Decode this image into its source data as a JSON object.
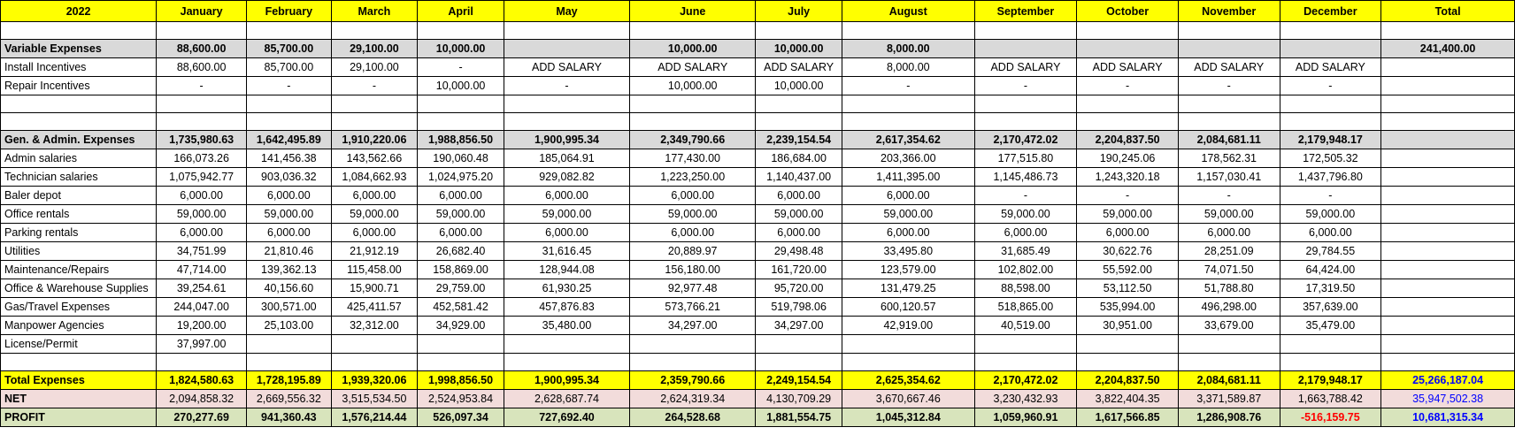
{
  "header": [
    "2022",
    "January",
    "February",
    "March",
    "April",
    "May",
    "June",
    "July",
    "August",
    "September",
    "October",
    "November",
    "December",
    "Total"
  ],
  "rows": [
    {
      "type": "blank",
      "cells": [
        "",
        "",
        "",
        "",
        "",
        "",
        "",
        "",
        "",
        "",
        "",
        "",
        "",
        ""
      ]
    },
    {
      "type": "sec",
      "cells": [
        "Variable Expenses",
        "88,600.00",
        "85,700.00",
        "29,100.00",
        "10,000.00",
        "",
        "10,000.00",
        "10,000.00",
        "8,000.00",
        "",
        "",
        "",
        "",
        "241,400.00"
      ]
    },
    {
      "type": "data",
      "cells": [
        "Install Incentives",
        "88,600.00",
        "85,700.00",
        "29,100.00",
        "-",
        "ADD SALARY",
        "ADD SALARY",
        "ADD SALARY",
        "8,000.00",
        "ADD SALARY",
        "ADD SALARY",
        "ADD SALARY",
        "ADD SALARY",
        ""
      ]
    },
    {
      "type": "data",
      "cells": [
        "Repair Incentives",
        "-",
        "-",
        "-",
        "10,000.00",
        "-",
        "10,000.00",
        "10,000.00",
        "-",
        "-",
        "-",
        "-",
        "-",
        ""
      ]
    },
    {
      "type": "blank",
      "cells": [
        "",
        "",
        "",
        "",
        "",
        "",
        "",
        "",
        "",
        "",
        "",
        "",
        "",
        ""
      ]
    },
    {
      "type": "blank",
      "cells": [
        "",
        "",
        "",
        "",
        "",
        "",
        "",
        "",
        "",
        "",
        "",
        "",
        "",
        ""
      ]
    },
    {
      "type": "sec",
      "cells": [
        "Gen. & Admin. Expenses",
        "1,735,980.63",
        "1,642,495.89",
        "1,910,220.06",
        "1,988,856.50",
        "1,900,995.34",
        "2,349,790.66",
        "2,239,154.54",
        "2,617,354.62",
        "2,170,472.02",
        "2,204,837.50",
        "2,084,681.11",
        "2,179,948.17",
        ""
      ]
    },
    {
      "type": "data",
      "cells": [
        "Admin salaries",
        "166,073.26",
        "141,456.38",
        "143,562.66",
        "190,060.48",
        "185,064.91",
        "177,430.00",
        "186,684.00",
        "203,366.00",
        "177,515.80",
        "190,245.06",
        "178,562.31",
        "172,505.32",
        ""
      ]
    },
    {
      "type": "data",
      "cells": [
        "Technician salaries",
        "1,075,942.77",
        "903,036.32",
        "1,084,662.93",
        "1,024,975.20",
        "929,082.82",
        "1,223,250.00",
        "1,140,437.00",
        "1,411,395.00",
        "1,145,486.73",
        "1,243,320.18",
        "1,157,030.41",
        "1,437,796.80",
        ""
      ]
    },
    {
      "type": "data",
      "cells": [
        "Baler depot",
        "6,000.00",
        "6,000.00",
        "6,000.00",
        "6,000.00",
        "6,000.00",
        "6,000.00",
        "6,000.00",
        "6,000.00",
        "-",
        "-",
        "-",
        "-",
        ""
      ]
    },
    {
      "type": "data",
      "cells": [
        "Office rentals",
        "59,000.00",
        "59,000.00",
        "59,000.00",
        "59,000.00",
        "59,000.00",
        "59,000.00",
        "59,000.00",
        "59,000.00",
        "59,000.00",
        "59,000.00",
        "59,000.00",
        "59,000.00",
        ""
      ]
    },
    {
      "type": "data",
      "cells": [
        "Parking rentals",
        "6,000.00",
        "6,000.00",
        "6,000.00",
        "6,000.00",
        "6,000.00",
        "6,000.00",
        "6,000.00",
        "6,000.00",
        "6,000.00",
        "6,000.00",
        "6,000.00",
        "6,000.00",
        ""
      ]
    },
    {
      "type": "data",
      "cells": [
        "Utilities",
        "34,751.99",
        "21,810.46",
        "21,912.19",
        "26,682.40",
        "31,616.45",
        "20,889.97",
        "29,498.48",
        "33,495.80",
        "31,685.49",
        "30,622.76",
        "28,251.09",
        "29,784.55",
        ""
      ]
    },
    {
      "type": "data",
      "cells": [
        "Maintenance/Repairs",
        "47,714.00",
        "139,362.13",
        "115,458.00",
        "158,869.00",
        "128,944.08",
        "156,180.00",
        "161,720.00",
        "123,579.00",
        "102,802.00",
        "55,592.00",
        "74,071.50",
        "64,424.00",
        ""
      ]
    },
    {
      "type": "data",
      "cells": [
        "Office & Warehouse Supplies",
        "39,254.61",
        "40,156.60",
        "15,900.71",
        "29,759.00",
        "61,930.25",
        "92,977.48",
        "95,720.00",
        "131,479.25",
        "88,598.00",
        "53,112.50",
        "51,788.80",
        "17,319.50",
        ""
      ]
    },
    {
      "type": "data",
      "cells": [
        "Gas/Travel Expenses",
        "244,047.00",
        "300,571.00",
        "425,411.57",
        "452,581.42",
        "457,876.83",
        "573,766.21",
        "519,798.06",
        "600,120.57",
        "518,865.00",
        "535,994.00",
        "496,298.00",
        "357,639.00",
        ""
      ]
    },
    {
      "type": "data",
      "cells": [
        "Manpower Agencies",
        "19,200.00",
        "25,103.00",
        "32,312.00",
        "34,929.00",
        "35,480.00",
        "34,297.00",
        "34,297.00",
        "42,919.00",
        "40,519.00",
        "30,951.00",
        "33,679.00",
        "35,479.00",
        ""
      ]
    },
    {
      "type": "data",
      "cells": [
        "License/Permit",
        "37,997.00",
        "",
        "",
        "",
        "",
        "",
        "",
        "",
        "",
        "",
        "",
        "",
        ""
      ]
    },
    {
      "type": "blank",
      "cells": [
        "",
        "",
        "",
        "",
        "",
        "",
        "",
        "",
        "",
        "",
        "",
        "",
        "",
        ""
      ]
    },
    {
      "type": "tot",
      "cells": [
        "Total Expenses",
        "1,824,580.63",
        "1,728,195.89",
        "1,939,320.06",
        "1,998,856.50",
        "1,900,995.34",
        "2,359,790.66",
        "2,249,154.54",
        "2,625,354.62",
        "2,170,472.02",
        "2,204,837.50",
        "2,084,681.11",
        "2,179,948.17",
        "25,266,187.04"
      ]
    },
    {
      "type": "net",
      "cells": [
        "NET",
        "2,094,858.32",
        "2,669,556.32",
        "3,515,534.50",
        "2,524,953.84",
        "2,628,687.74",
        "2,624,319.34",
        "4,130,709.29",
        "3,670,667.46",
        "3,230,432.93",
        "3,822,404.35",
        "3,371,589.87",
        "1,663,788.42",
        "35,947,502.38"
      ]
    },
    {
      "type": "profit",
      "cells": [
        "PROFIT",
        "270,277.69",
        "941,360.43",
        "1,576,214.44",
        "526,097.34",
        "727,692.40",
        "264,528.68",
        "1,881,554.75",
        "1,045,312.84",
        "1,059,960.91",
        "1,617,566.85",
        "1,286,908.76",
        "-516,159.75",
        "10,681,315.34"
      ]
    }
  ],
  "colors": {
    "header_bg": "#ffff00",
    "section_bg": "#d9d9d9",
    "net_bg": "#f2dcdb",
    "profit_bg": "#d8e4bc",
    "negative": "#ff0000",
    "total_text": "#0000ff"
  }
}
